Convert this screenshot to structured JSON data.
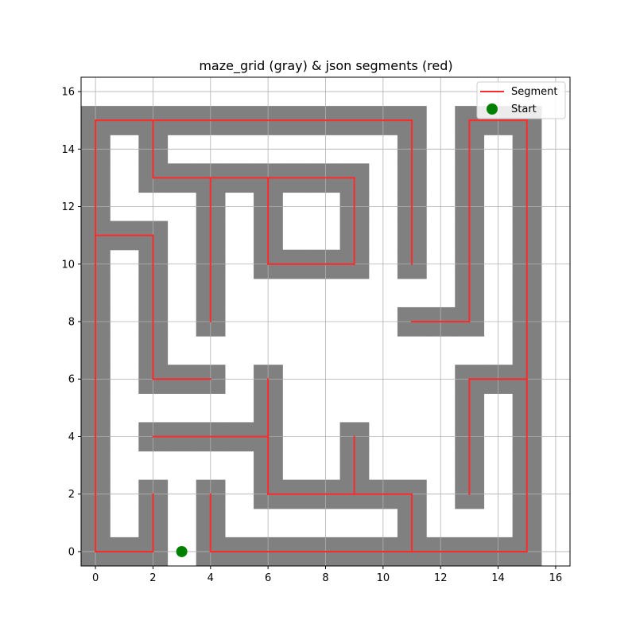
{
  "chart_data": {
    "type": "maze",
    "title": "maze_grid (gray) & json segments (red)",
    "xlabel": "",
    "ylabel": "",
    "xlim": [
      -0.5,
      16.5
    ],
    "ylim": [
      -0.5,
      16.5
    ],
    "x_ticks": [
      0,
      2,
      4,
      6,
      8,
      10,
      12,
      14,
      16
    ],
    "y_ticks": [
      0,
      2,
      4,
      6,
      8,
      10,
      12,
      14,
      16
    ],
    "grid": true,
    "legend_position": "upper-right",
    "legend": [
      {
        "label": "Segment",
        "color": "#ff2a2a",
        "kind": "line"
      },
      {
        "label": "Start",
        "color": "#008000",
        "kind": "marker"
      }
    ],
    "colors": {
      "maze_cells": "#808080",
      "segments": "#ff2a2a",
      "start": "#008000",
      "grid": "#b0b0b0"
    },
    "segments": [
      [
        [
          0,
          0
        ],
        [
          0,
          15
        ]
      ],
      [
        [
          0,
          15
        ],
        [
          11,
          15
        ]
      ],
      [
        [
          11,
          15
        ],
        [
          11,
          10
        ]
      ],
      [
        [
          0,
          0
        ],
        [
          2,
          0
        ]
      ],
      [
        [
          2,
          0
        ],
        [
          2,
          2
        ]
      ],
      [
        [
          2,
          15
        ],
        [
          2,
          13
        ]
      ],
      [
        [
          2,
          13
        ],
        [
          9,
          13
        ]
      ],
      [
        [
          9,
          13
        ],
        [
          9,
          10
        ]
      ],
      [
        [
          9,
          10
        ],
        [
          6,
          10
        ]
      ],
      [
        [
          6,
          10
        ],
        [
          6,
          13
        ]
      ],
      [
        [
          4,
          13
        ],
        [
          4,
          8
        ]
      ],
      [
        [
          0,
          11
        ],
        [
          2,
          11
        ]
      ],
      [
        [
          2,
          11
        ],
        [
          2,
          6
        ]
      ],
      [
        [
          2,
          6
        ],
        [
          4,
          6
        ]
      ],
      [
        [
          2,
          4
        ],
        [
          6,
          4
        ]
      ],
      [
        [
          6,
          6
        ],
        [
          6,
          2
        ]
      ],
      [
        [
          6,
          2
        ],
        [
          11,
          2
        ]
      ],
      [
        [
          11,
          2
        ],
        [
          11,
          0
        ]
      ],
      [
        [
          9,
          4
        ],
        [
          9,
          2
        ]
      ],
      [
        [
          4,
          2
        ],
        [
          4,
          0
        ]
      ],
      [
        [
          4,
          0
        ],
        [
          15,
          0
        ]
      ],
      [
        [
          15,
          0
        ],
        [
          15,
          15
        ]
      ],
      [
        [
          15,
          15
        ],
        [
          13,
          15
        ]
      ],
      [
        [
          13,
          15
        ],
        [
          13,
          8
        ]
      ],
      [
        [
          13,
          8
        ],
        [
          11,
          8
        ]
      ],
      [
        [
          15,
          6
        ],
        [
          13,
          6
        ]
      ],
      [
        [
          13,
          6
        ],
        [
          13,
          2
        ]
      ]
    ],
    "start": {
      "x": 3,
      "y": 0
    }
  }
}
